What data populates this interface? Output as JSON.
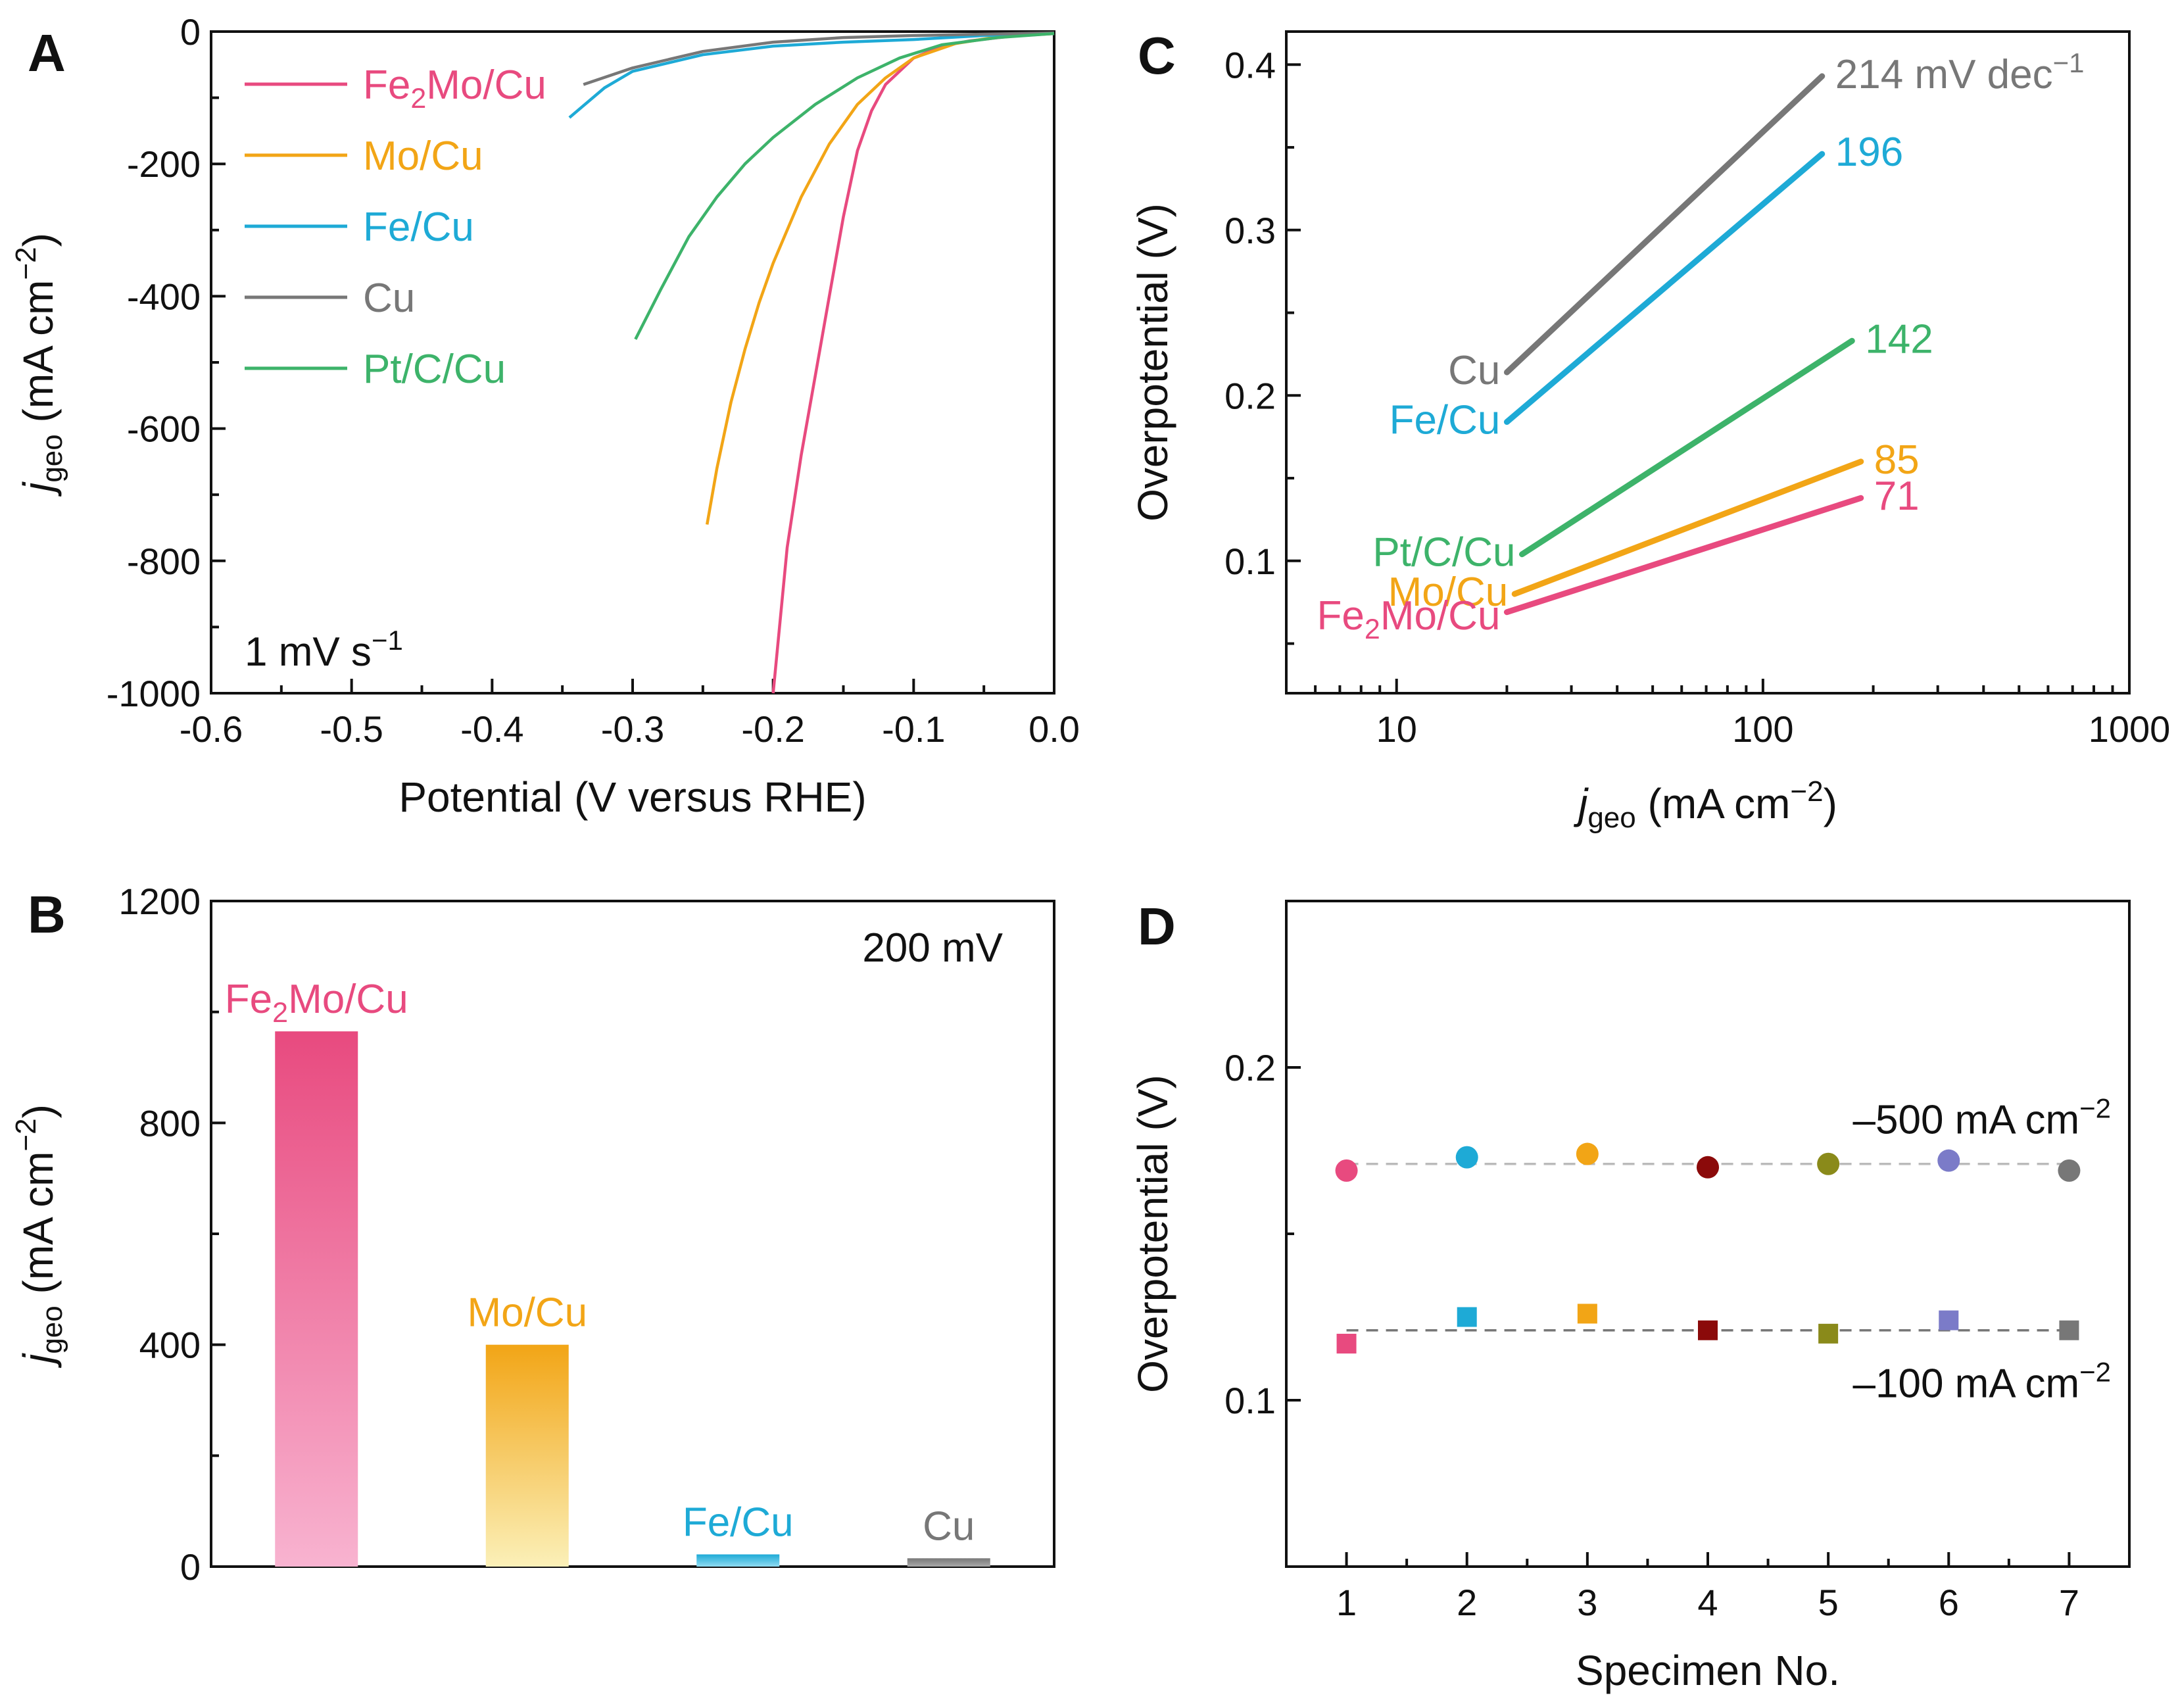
{
  "figure": {
    "panel_labels": [
      "A",
      "B",
      "C",
      "D"
    ]
  },
  "chart_data": [
    {
      "panel": "A",
      "type": "line",
      "xlabel": "Potential (V versus RHE)",
      "ylabel_main": "j",
      "ylabel_sub": "geo",
      "ylabel_unit": " (mA cm",
      "ylabel_sup": "−2",
      "ylabel_close": ")",
      "xlim": [
        -0.6,
        0.0
      ],
      "ylim": [
        -1000,
        0
      ],
      "xticks": [
        -0.6,
        -0.5,
        -0.4,
        -0.3,
        -0.2,
        -0.1,
        0.0
      ],
      "xtick_labels": [
        "-0.6",
        "-0.5",
        "-0.4",
        "-0.3",
        "-0.2",
        "-0.1",
        "0.0"
      ],
      "yticks": [
        0,
        -200,
        -400,
        -600,
        -800,
        -1000
      ],
      "ytick_labels": [
        "0",
        "-200",
        "-400",
        "-600",
        "-800",
        "-1000"
      ],
      "annotation": "1 mV s",
      "annotation_sup": "−1",
      "legend_position": "top-left",
      "series": [
        {
          "name": "Fe2Mo/Cu",
          "label_main": "Fe",
          "label_sub": "2",
          "label_rest": "Mo/Cu",
          "color": "#e84a7f",
          "points": [
            [
              0,
              -3
            ],
            [
              -0.03,
              -7
            ],
            [
              -0.06,
              -14
            ],
            [
              -0.08,
              -22
            ],
            [
              -0.1,
              -40
            ],
            [
              -0.12,
              -80
            ],
            [
              -0.13,
              -120
            ],
            [
              -0.14,
              -180
            ],
            [
              -0.15,
              -280
            ],
            [
              -0.16,
              -400
            ],
            [
              -0.17,
              -520
            ],
            [
              -0.18,
              -640
            ],
            [
              -0.19,
              -780
            ],
            [
              -0.2,
              -1000
            ]
          ]
        },
        {
          "name": "Mo/Cu",
          "label_main": "Mo/Cu",
          "label_sub": "",
          "label_rest": "",
          "color": "#f2a516",
          "points": [
            [
              0,
              -3
            ],
            [
              -0.04,
              -8
            ],
            [
              -0.07,
              -18
            ],
            [
              -0.1,
              -40
            ],
            [
              -0.12,
              -70
            ],
            [
              -0.14,
              -110
            ],
            [
              -0.16,
              -170
            ],
            [
              -0.18,
              -250
            ],
            [
              -0.2,
              -350
            ],
            [
              -0.21,
              -410
            ],
            [
              -0.22,
              -480
            ],
            [
              -0.23,
              -560
            ],
            [
              -0.24,
              -660
            ],
            [
              -0.247,
              -745
            ]
          ]
        },
        {
          "name": "Fe/Cu",
          "label_main": "Fe/Cu",
          "label_sub": "",
          "label_rest": "",
          "color": "#1eaad6",
          "points": [
            [
              0,
              -3
            ],
            [
              -0.05,
              -6
            ],
            [
              -0.1,
              -12
            ],
            [
              -0.15,
              -16
            ],
            [
              -0.2,
              -22
            ],
            [
              -0.25,
              -35
            ],
            [
              -0.3,
              -60
            ],
            [
              -0.32,
              -85
            ],
            [
              -0.345,
              -130
            ]
          ]
        },
        {
          "name": "Cu",
          "label_main": "Cu",
          "label_sub": "",
          "label_rest": "",
          "color": "#777777",
          "points": [
            [
              0,
              -2
            ],
            [
              -0.05,
              -4
            ],
            [
              -0.1,
              -6
            ],
            [
              -0.15,
              -9
            ],
            [
              -0.2,
              -16
            ],
            [
              -0.25,
              -30
            ],
            [
              -0.3,
              -55
            ],
            [
              -0.335,
              -80
            ]
          ]
        },
        {
          "name": "Pt/C/Cu",
          "label_main": "Pt/C/Cu",
          "label_sub": "",
          "label_rest": "",
          "color": "#3db36a",
          "points": [
            [
              0,
              -3
            ],
            [
              -0.04,
              -9
            ],
            [
              -0.08,
              -20
            ],
            [
              -0.11,
              -40
            ],
            [
              -0.14,
              -70
            ],
            [
              -0.17,
              -110
            ],
            [
              -0.2,
              -160
            ],
            [
              -0.22,
              -200
            ],
            [
              -0.24,
              -250
            ],
            [
              -0.26,
              -310
            ],
            [
              -0.28,
              -390
            ],
            [
              -0.298,
              -465
            ]
          ]
        }
      ]
    },
    {
      "panel": "B",
      "type": "bar",
      "ylabel_main": "j",
      "ylabel_sub": "geo",
      "ylabel_unit": " (mA cm",
      "ylabel_sup": "−2",
      "ylabel_close": ")",
      "ylim": [
        0,
        1200
      ],
      "yticks": [
        0,
        400,
        800,
        1200
      ],
      "ytick_labels": [
        "0",
        "400",
        "800",
        "1200"
      ],
      "annotation": "200 mV",
      "categories": [
        "Fe2Mo/Cu",
        "Mo/Cu",
        "Fe/Cu",
        "Cu"
      ],
      "bars": [
        {
          "label_main": "Fe",
          "label_sub": "2",
          "label_rest": "Mo/Cu",
          "value": 965,
          "color": "#e84a7f",
          "color_light": "#f8b3d0"
        },
        {
          "label_main": "Mo/Cu",
          "label_sub": "",
          "label_rest": "",
          "value": 400,
          "color": "#f2a516",
          "color_light": "#fbf0b8"
        },
        {
          "label_main": "Fe/Cu",
          "label_sub": "",
          "label_rest": "",
          "value": 22,
          "color": "#1eaad6",
          "color_light": "#8fdcf2"
        },
        {
          "label_main": "Cu",
          "label_sub": "",
          "label_rest": "",
          "value": 15,
          "color": "#777777",
          "color_light": "#aaaaaa"
        }
      ]
    },
    {
      "panel": "C",
      "type": "line",
      "xscale": "log",
      "xlabel_main": "j",
      "xlabel_sub": "geo",
      "xlabel_unit": " (mA cm",
      "xlabel_sup": "−2",
      "xlabel_close": ")",
      "ylabel": "Overpotential (V)",
      "xlim": [
        5,
        1000
      ],
      "ylim": [
        0.02,
        0.42
      ],
      "xticks": [
        10,
        100,
        1000
      ],
      "xtick_labels": [
        "10",
        "100",
        "1000"
      ],
      "yticks": [
        0.1,
        0.2,
        0.3,
        0.4
      ],
      "ytick_labels": [
        "0.1",
        "0.2",
        "0.3",
        "0.4"
      ],
      "series": [
        {
          "name": "Cu",
          "label_main": "Cu",
          "label_sub": "",
          "label_rest": "",
          "tafel": "214 mV dec",
          "tafel_sup": "−1",
          "color": "#777777",
          "x_range": [
            20,
            145
          ],
          "y_range": [
            0.214,
            0.393
          ]
        },
        {
          "name": "Fe/Cu",
          "label_main": "Fe/Cu",
          "label_sub": "",
          "label_rest": "",
          "tafel": "196",
          "tafel_sup": "",
          "color": "#1eaad6",
          "x_range": [
            20,
            145
          ],
          "y_range": [
            0.184,
            0.346
          ]
        },
        {
          "name": "Pt/C/Cu",
          "label_main": "Pt/C/Cu",
          "label_sub": "",
          "label_rest": "",
          "tafel": "142",
          "tafel_sup": "",
          "color": "#3db36a",
          "x_range": [
            22,
            175
          ],
          "y_range": [
            0.104,
            0.233
          ]
        },
        {
          "name": "Mo/Cu",
          "label_main": "Mo/Cu",
          "label_sub": "",
          "label_rest": "",
          "tafel": "85",
          "tafel_sup": "",
          "color": "#f2a516",
          "x_range": [
            21,
            185
          ],
          "y_range": [
            0.08,
            0.16
          ]
        },
        {
          "name": "Fe2Mo/Cu",
          "label_main": "Fe",
          "label_sub": "2",
          "label_rest": "Mo/Cu",
          "tafel": "71",
          "tafel_sup": "",
          "color": "#e84a7f",
          "x_range": [
            20,
            185
          ],
          "y_range": [
            0.069,
            0.138
          ]
        }
      ]
    },
    {
      "panel": "D",
      "type": "scatter",
      "xlabel": "Specimen No.",
      "ylabel": "Overpotential (V)",
      "xlim": [
        0.5,
        7.5
      ],
      "ylim": [
        0.05,
        0.25
      ],
      "xticks": [
        1,
        2,
        3,
        4,
        5,
        6,
        7
      ],
      "xtick_labels": [
        "1",
        "2",
        "3",
        "4",
        "5",
        "6",
        "7"
      ],
      "yticks": [
        0.1,
        0.2
      ],
      "ytick_labels": [
        "0.1",
        "0.2"
      ],
      "colors": [
        "#e84a7f",
        "#1eaad6",
        "#f2a516",
        "#8b0a0a",
        "#8a8a1a",
        "#7b7bc8",
        "#777777"
      ],
      "series": [
        {
          "name": "-500 mA cm-2",
          "label": "–500 mA cm",
          "label_sup": "−2",
          "marker": "circle",
          "mean": 0.171,
          "line_color": "#bbbbbb",
          "x": [
            1,
            2,
            3,
            4,
            5,
            6,
            7
          ],
          "y": [
            0.169,
            0.173,
            0.174,
            0.17,
            0.171,
            0.172,
            0.169
          ]
        },
        {
          "name": "-100 mA cm-2",
          "label": "–100 mA cm",
          "label_sup": "−2",
          "marker": "square",
          "mean": 0.121,
          "line_color": "#777777",
          "x": [
            1,
            2,
            3,
            4,
            5,
            6,
            7
          ],
          "y": [
            0.117,
            0.125,
            0.126,
            0.121,
            0.12,
            0.124,
            0.121
          ]
        }
      ]
    }
  ]
}
